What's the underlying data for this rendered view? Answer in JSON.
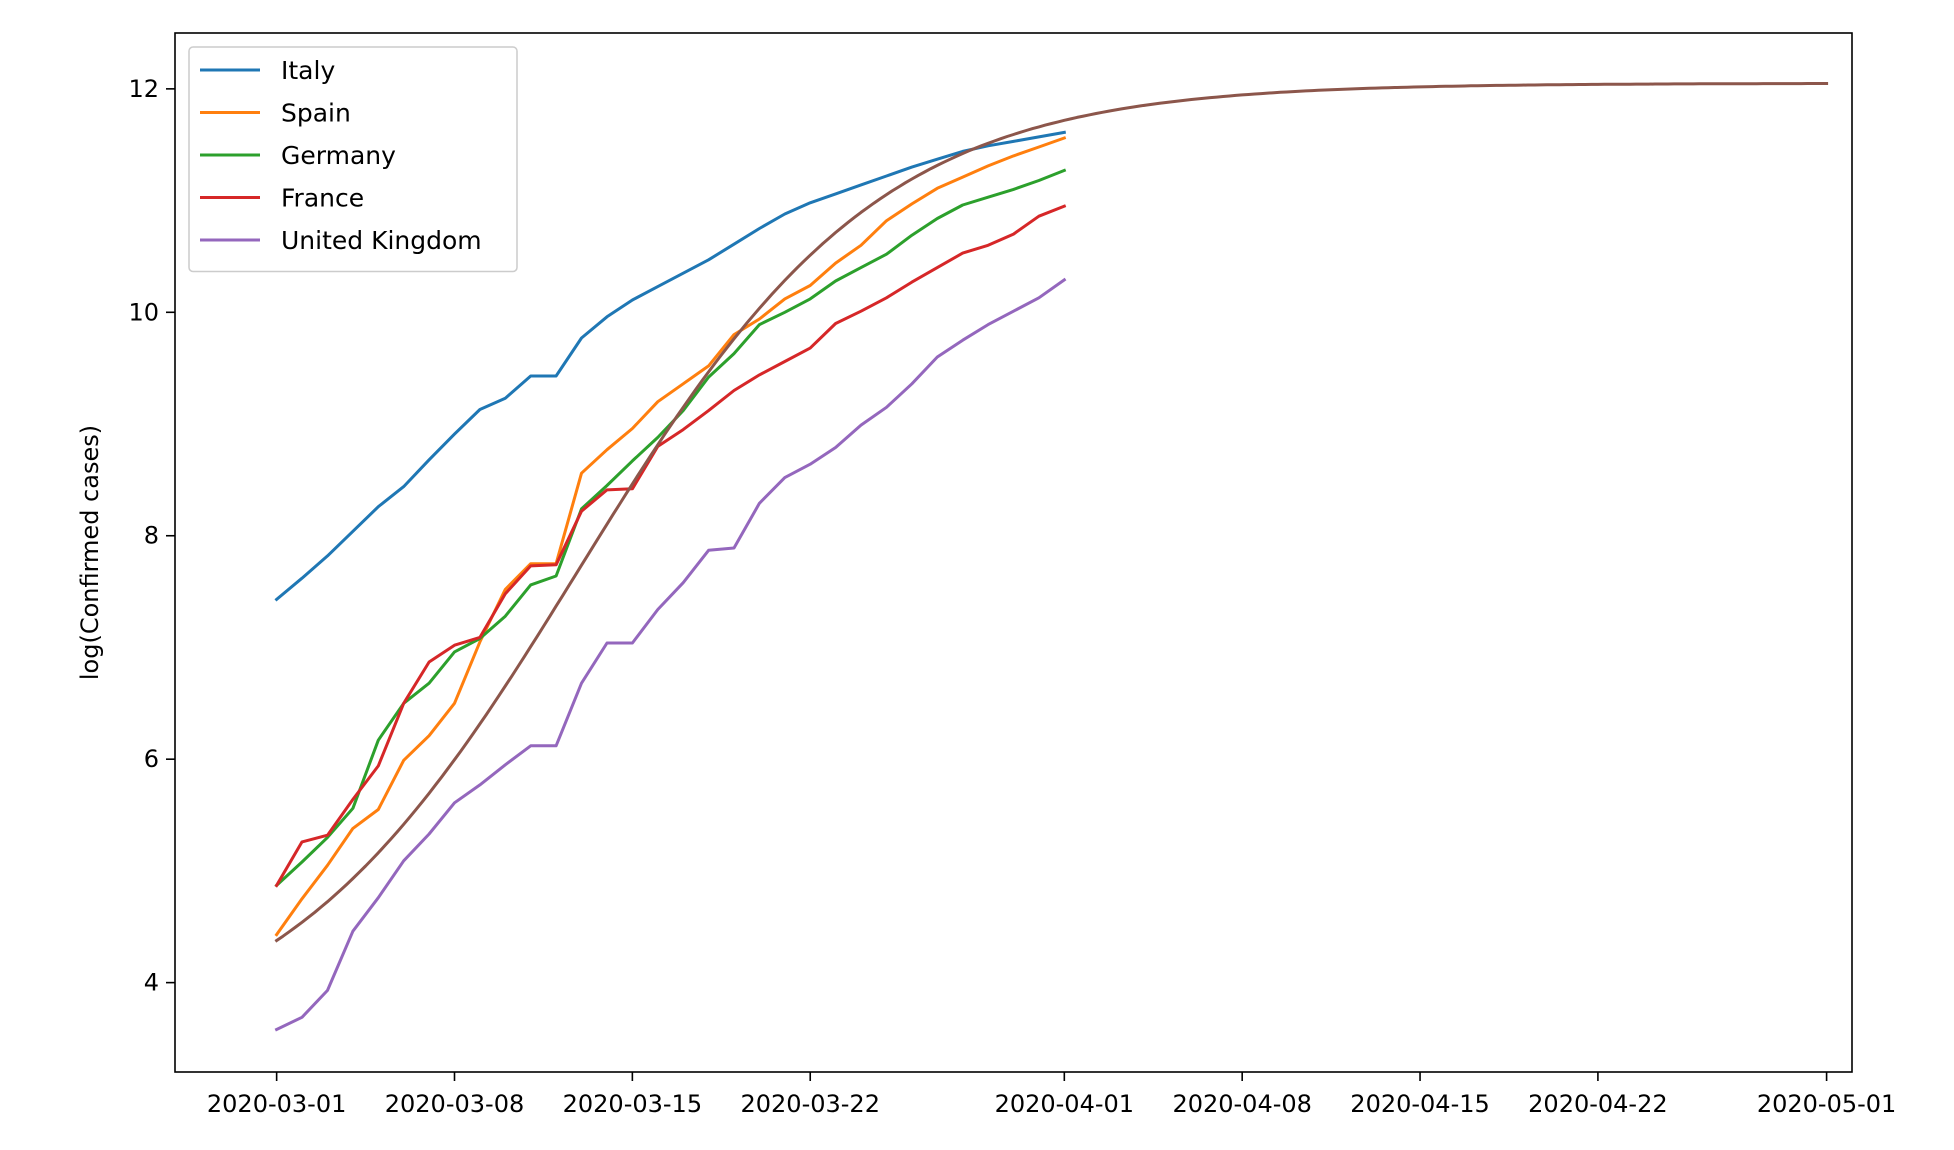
{
  "chart_data": {
    "type": "line",
    "ylabel": "log(Confirmed cases)",
    "xlabel": "",
    "x_start": "2020-03-01",
    "xlim": [
      "2020-02-26",
      "2020-05-02"
    ],
    "ylim": [
      3.2,
      12.5
    ],
    "x_ticks": [
      "2020-03-01",
      "2020-03-08",
      "2020-03-15",
      "2020-03-22",
      "2020-04-01",
      "2020-04-08",
      "2020-04-15",
      "2020-04-22",
      "2020-05-01"
    ],
    "y_ticks": [
      4,
      6,
      8,
      10,
      12
    ],
    "grid": false,
    "legend": {
      "placement": "top-left"
    },
    "series": [
      {
        "name": "Italy",
        "color": "#1f77b4",
        "values": [
          7.43,
          7.62,
          7.82,
          8.04,
          8.26,
          8.44,
          8.68,
          8.91,
          9.13,
          9.23,
          9.43,
          9.43,
          9.77,
          9.96,
          10.11,
          10.23,
          10.35,
          10.47,
          10.61,
          10.75,
          10.88,
          10.98,
          11.06,
          11.14,
          11.22,
          11.3,
          11.37,
          11.44,
          11.49,
          11.53,
          11.57,
          11.61
        ]
      },
      {
        "name": "Spain",
        "color": "#ff7f0e",
        "values": [
          4.43,
          4.75,
          5.05,
          5.38,
          5.55,
          5.99,
          6.21,
          6.5,
          7.05,
          7.52,
          7.75,
          7.75,
          8.56,
          8.77,
          8.96,
          9.2,
          9.36,
          9.52,
          9.8,
          9.94,
          10.12,
          10.24,
          10.44,
          10.6,
          10.82,
          10.97,
          11.11,
          11.21,
          11.31,
          11.4,
          11.48,
          11.56
        ]
      },
      {
        "name": "Germany",
        "color": "#2ca02c",
        "values": [
          4.87,
          5.08,
          5.3,
          5.56,
          6.17,
          6.5,
          6.68,
          6.96,
          7.08,
          7.28,
          7.56,
          7.64,
          8.24,
          8.45,
          8.67,
          8.88,
          9.12,
          9.42,
          9.63,
          9.89,
          10.0,
          10.12,
          10.28,
          10.4,
          10.52,
          10.69,
          10.84,
          10.96,
          11.03,
          11.1,
          11.18,
          11.27
        ]
      },
      {
        "name": "France",
        "color": "#d62728",
        "values": [
          4.87,
          5.26,
          5.32,
          5.64,
          5.94,
          6.5,
          6.87,
          7.02,
          7.09,
          7.48,
          7.73,
          7.74,
          8.22,
          8.41,
          8.42,
          8.8,
          8.95,
          9.12,
          9.3,
          9.44,
          9.56,
          9.68,
          9.9,
          10.01,
          10.13,
          10.27,
          10.4,
          10.53,
          10.6,
          10.7,
          10.86,
          10.95
        ]
      },
      {
        "name": "United Kingdom",
        "color": "#9467bd",
        "values": [
          3.58,
          3.69,
          3.93,
          4.46,
          4.76,
          5.09,
          5.33,
          5.61,
          5.77,
          5.95,
          6.12,
          6.12,
          6.68,
          7.04,
          7.04,
          7.34,
          7.58,
          7.87,
          7.89,
          8.29,
          8.52,
          8.64,
          8.79,
          8.99,
          9.15,
          9.36,
          9.6,
          9.75,
          9.89,
          10.01,
          10.13,
          10.29
        ]
      },
      {
        "name": "",
        "color": "#8c564b",
        "fit": {
          "type": "logistic",
          "K": 12.05,
          "L0": 3.35,
          "k": 0.169,
          "t0": 11.9,
          "days": 61
        }
      }
    ]
  }
}
